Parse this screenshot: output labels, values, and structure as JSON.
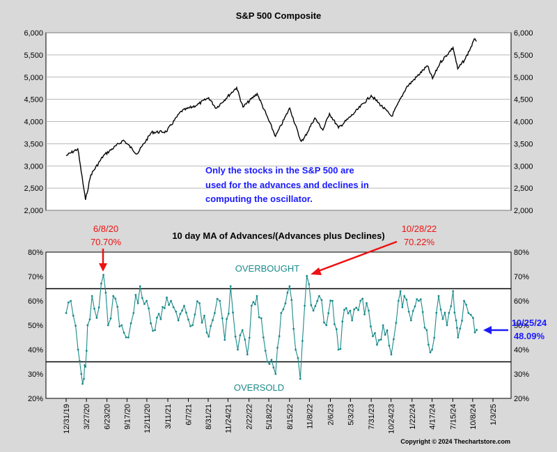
{
  "chart_data": [
    {
      "type": "line",
      "title": "S&P 500 Composite",
      "ylim": [
        2000,
        6000
      ],
      "yticks": [
        "2,000",
        "2,500",
        "3,000",
        "3,500",
        "4,000",
        "4,500",
        "5,000",
        "5,500",
        "6,000"
      ],
      "ytick_values": [
        2000,
        2500,
        3000,
        3500,
        4000,
        4500,
        5000,
        5500,
        6000
      ],
      "grid": true,
      "x_dates": [
        "2019-12-31",
        "2020-02-19",
        "2020-03-23",
        "2020-04-15",
        "2020-06-08",
        "2020-09-02",
        "2020-10-30",
        "2020-12-31",
        "2021-03-04",
        "2021-05-07",
        "2021-07-15",
        "2021-09-02",
        "2021-10-04",
        "2021-12-31",
        "2022-01-27",
        "2022-03-29",
        "2022-06-16",
        "2022-08-16",
        "2022-09-30",
        "2022-10-12",
        "2022-12-01",
        "2023-01-05",
        "2023-02-02",
        "2023-03-13",
        "2023-05-19",
        "2023-07-31",
        "2023-10-27",
        "2023-12-29",
        "2024-03-28",
        "2024-04-19",
        "2024-05-21",
        "2024-07-16",
        "2024-08-05",
        "2024-09-06",
        "2024-10-18",
        "2024-10-25"
      ],
      "values": [
        3230,
        3386,
        2237,
        2800,
        3232,
        3580,
        3270,
        3756,
        3770,
        4232,
        4375,
        4537,
        4300,
        4766,
        4326,
        4630,
        3666,
        4305,
        3586,
        3577,
        4080,
        3808,
        4180,
        3856,
        4190,
        4588,
        4117,
        4770,
        5254,
        4967,
        5321,
        5667,
        5186,
        5408,
        5864,
        5808
      ],
      "annotation": "Only the stocks in the S&P 500 are used for the advances and declines in computing the oscillator."
    },
    {
      "type": "line",
      "title": "10 day MA of Advances/(Advances plus Declines)",
      "ylim": [
        0.2,
        0.8
      ],
      "yticks": [
        "20%",
        "30%",
        "40%",
        "50%",
        "60%",
        "70%",
        "80%"
      ],
      "ytick_values": [
        0.2,
        0.3,
        0.4,
        0.5,
        0.6,
        0.7,
        0.8
      ],
      "reference_lines": [
        0.65,
        0.35
      ],
      "grid": false,
      "x_dates": [
        "2019-12-31",
        "2020-01-20",
        "2020-02-20",
        "2020-03-05",
        "2020-03-16",
        "2020-03-23",
        "2020-04-01",
        "2020-04-20",
        "2020-05-10",
        "2020-06-08",
        "2020-06-28",
        "2020-07-20",
        "2020-08-25",
        "2020-09-23",
        "2020-10-15",
        "2020-11-12",
        "2020-12-10",
        "2021-01-15",
        "2021-02-25",
        "2021-03-25",
        "2021-04-25",
        "2021-05-20",
        "2021-06-25",
        "2021-07-25",
        "2021-08-25",
        "2021-09-28",
        "2021-10-20",
        "2021-11-10",
        "2021-12-05",
        "2022-01-05",
        "2022-01-25",
        "2022-02-15",
        "2022-03-05",
        "2022-03-28",
        "2022-04-25",
        "2022-05-12",
        "2022-06-16",
        "2022-07-10",
        "2022-08-15",
        "2022-09-10",
        "2022-09-30",
        "2022-10-28",
        "2022-11-25",
        "2022-12-20",
        "2023-01-20",
        "2023-02-15",
        "2023-03-13",
        "2023-04-15",
        "2023-05-10",
        "2023-06-15",
        "2023-07-20",
        "2023-08-25",
        "2023-09-20",
        "2023-10-25",
        "2023-11-25",
        "2023-12-20",
        "2024-01-18",
        "2024-02-20",
        "2024-03-25",
        "2024-04-17",
        "2024-05-15",
        "2024-06-20",
        "2024-07-16",
        "2024-07-29",
        "2024-08-06",
        "2024-09-01",
        "2024-09-20",
        "2024-10-10",
        "2024-10-25"
      ],
      "values": [
        0.55,
        0.6,
        0.4,
        0.3,
        0.28,
        0.33,
        0.5,
        0.62,
        0.53,
        0.707,
        0.5,
        0.62,
        0.5,
        0.45,
        0.55,
        0.66,
        0.6,
        0.48,
        0.57,
        0.6,
        0.52,
        0.58,
        0.5,
        0.59,
        0.47,
        0.55,
        0.6,
        0.44,
        0.66,
        0.4,
        0.48,
        0.38,
        0.58,
        0.62,
        0.45,
        0.35,
        0.3,
        0.55,
        0.66,
        0.4,
        0.28,
        0.7022,
        0.56,
        0.62,
        0.5,
        0.6,
        0.4,
        0.57,
        0.52,
        0.6,
        0.56,
        0.42,
        0.5,
        0.38,
        0.6,
        0.62,
        0.52,
        0.6,
        0.48,
        0.4,
        0.62,
        0.5,
        0.64,
        0.52,
        0.45,
        0.6,
        0.55,
        0.53,
        0.4809
      ],
      "overbought_label": "OVERBOUGHT",
      "oversold_label": "OVERSOLD",
      "annotations": [
        {
          "date": "6/8/20",
          "value": "70.70%"
        },
        {
          "date": "10/28/22",
          "value": "70.22%"
        },
        {
          "date": "10/25/24",
          "value": "48.09%"
        }
      ],
      "x_tick_labels": [
        "12/31/19",
        "3/27/20",
        "6/23/20",
        "9/17/20",
        "12/11/20",
        "3/11/21",
        "6/7/21",
        "8/31/21",
        "11/24/21",
        "2/22/22",
        "5/18/22",
        "8/15/22",
        "11/8/22",
        "2/6/23",
        "5/3/23",
        "7/31/23",
        "10/24/23",
        "1/22/24",
        "4/17/24",
        "7/15/24",
        "10/8/24",
        "1/3/25"
      ],
      "x_tick_dates": [
        "2019-12-31",
        "2020-03-27",
        "2020-06-23",
        "2020-09-17",
        "2020-12-11",
        "2021-03-11",
        "2021-06-07",
        "2021-08-31",
        "2021-11-24",
        "2022-02-22",
        "2022-05-18",
        "2022-08-15",
        "2022-11-08",
        "2023-02-06",
        "2023-05-03",
        "2023-07-31",
        "2023-10-24",
        "2024-01-22",
        "2024-04-17",
        "2024-07-15",
        "2024-10-08",
        "2025-01-03"
      ]
    }
  ],
  "colors": {
    "background": "#d9d9d9",
    "plot_bg": "#ffffff",
    "price_line": "#000000",
    "oscillator": "#1b8a8a",
    "annotation_blue": "#1a1aff",
    "annotation_red": "#ee1111",
    "text_teal": "#1b8a8a"
  },
  "copyright": "Copyright © 2024 Thechartstore.com"
}
